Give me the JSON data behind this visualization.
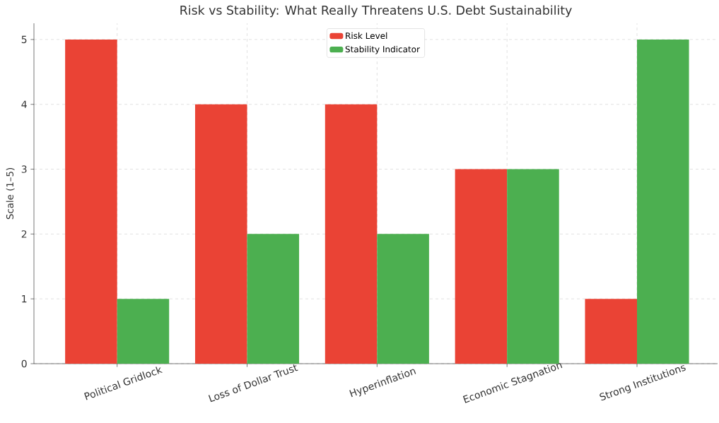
{
  "chart_data": {
    "type": "bar",
    "title": "Risk vs Stability: What Really Threatens U.S. Debt Sustainability",
    "ylabel": "Scale (1–5)",
    "categories": [
      "Political Gridlock",
      "Loss of Dollar Trust",
      "Hyperinflation",
      "Economic Stagnation",
      "Strong Institutions"
    ],
    "series": [
      {
        "name": "Risk Level",
        "color": "#ea4335",
        "values": [
          5,
          4,
          4,
          3,
          1
        ]
      },
      {
        "name": "Stability Indicator",
        "color": "#4caf50",
        "values": [
          1,
          2,
          2,
          3,
          5
        ]
      }
    ],
    "ylim": [
      0,
      5.25
    ],
    "yticks": [
      0,
      1,
      2,
      3,
      4,
      5
    ],
    "grid": true,
    "legend": "top"
  }
}
